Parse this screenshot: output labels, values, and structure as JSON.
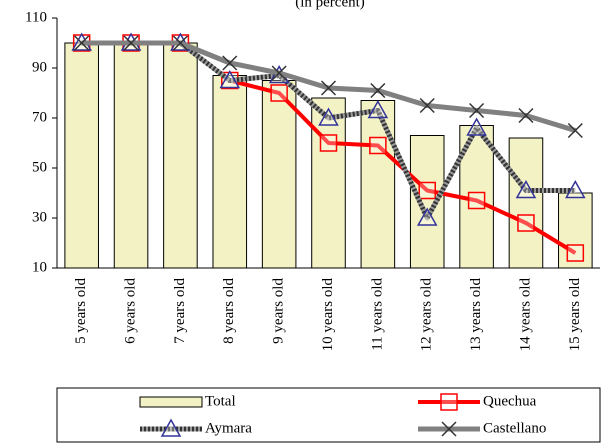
{
  "chart_data": {
    "type": "bar",
    "title": "(in percent)",
    "categories": [
      "5 years old",
      "6 years old",
      "7 years old",
      "8 years old",
      "9 years old",
      "10 years old",
      "11 years old",
      "12 years old",
      "13 years old",
      "14 years old",
      "15 years old"
    ],
    "series": [
      {
        "name": "Total",
        "type": "bar",
        "color": "#f2f2c4",
        "values": [
          100,
          100,
          100,
          87,
          85,
          78,
          77,
          63,
          67,
          62,
          40
        ]
      },
      {
        "name": "Quechua",
        "type": "line",
        "marker": "square",
        "color": "#ff0000",
        "marker_color": "#ff0000",
        "values": [
          100,
          100,
          100,
          85,
          80,
          60,
          59,
          41,
          37,
          28,
          16
        ]
      },
      {
        "name": "Aymara",
        "type": "line",
        "marker": "triangle",
        "color": "#333333",
        "marker_color": "#333399",
        "values": [
          100,
          100,
          100,
          85,
          87,
          70,
          73,
          30,
          66,
          41,
          41
        ]
      },
      {
        "name": "Castellano",
        "type": "line",
        "marker": "x",
        "color": "#808080",
        "marker_color": "#333333",
        "values": [
          100,
          100,
          100,
          92,
          88,
          82,
          81,
          75,
          73,
          71,
          65
        ]
      }
    ],
    "ylim": [
      10,
      110
    ],
    "yticks": [
      10,
      30,
      50,
      70,
      90,
      110
    ],
    "legend": "bottom"
  }
}
